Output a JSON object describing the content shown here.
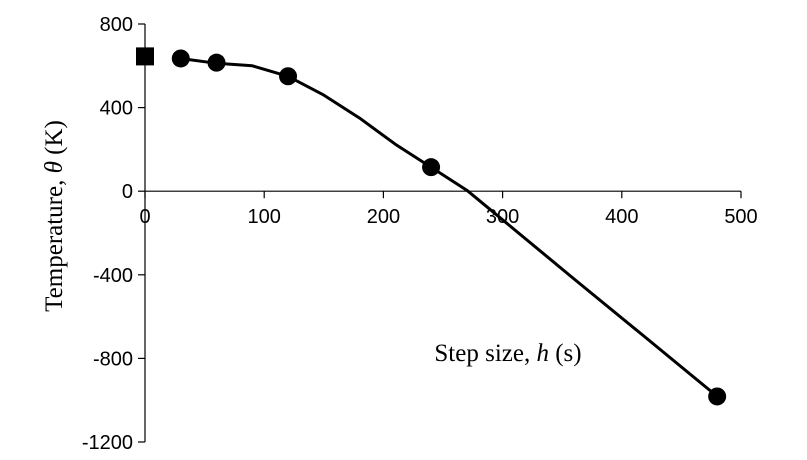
{
  "chart_data": {
    "type": "line",
    "xlabel_parts": {
      "prefix": "Step size, ",
      "var": "h",
      "unit": " (s)"
    },
    "ylabel_parts": {
      "prefix": "Temperature,  ",
      "var": "θ",
      "unit": " (K)"
    },
    "xlim": [
      0,
      500
    ],
    "ylim": [
      -1200,
      800
    ],
    "x_ticks": [
      0,
      100,
      200,
      300,
      400,
      500
    ],
    "y_ticks": [
      800,
      400,
      0,
      -400,
      -800,
      -1200
    ],
    "grid": false,
    "legend": "none",
    "series": [
      {
        "marker": "circle",
        "x": [
          30,
          60,
          120,
          240,
          480
        ],
        "y": [
          635,
          615,
          550,
          115,
          -982
        ]
      },
      {
        "marker": "square",
        "x": [
          0
        ],
        "y": [
          645
        ]
      }
    ],
    "curve": {
      "x": [
        30,
        60,
        90,
        120,
        150,
        180,
        210,
        240,
        270,
        300,
        360,
        420,
        480
      ],
      "y": [
        635,
        612,
        600,
        550,
        460,
        350,
        225,
        115,
        5,
        -137,
        -420,
        -700,
        -982
      ]
    }
  }
}
